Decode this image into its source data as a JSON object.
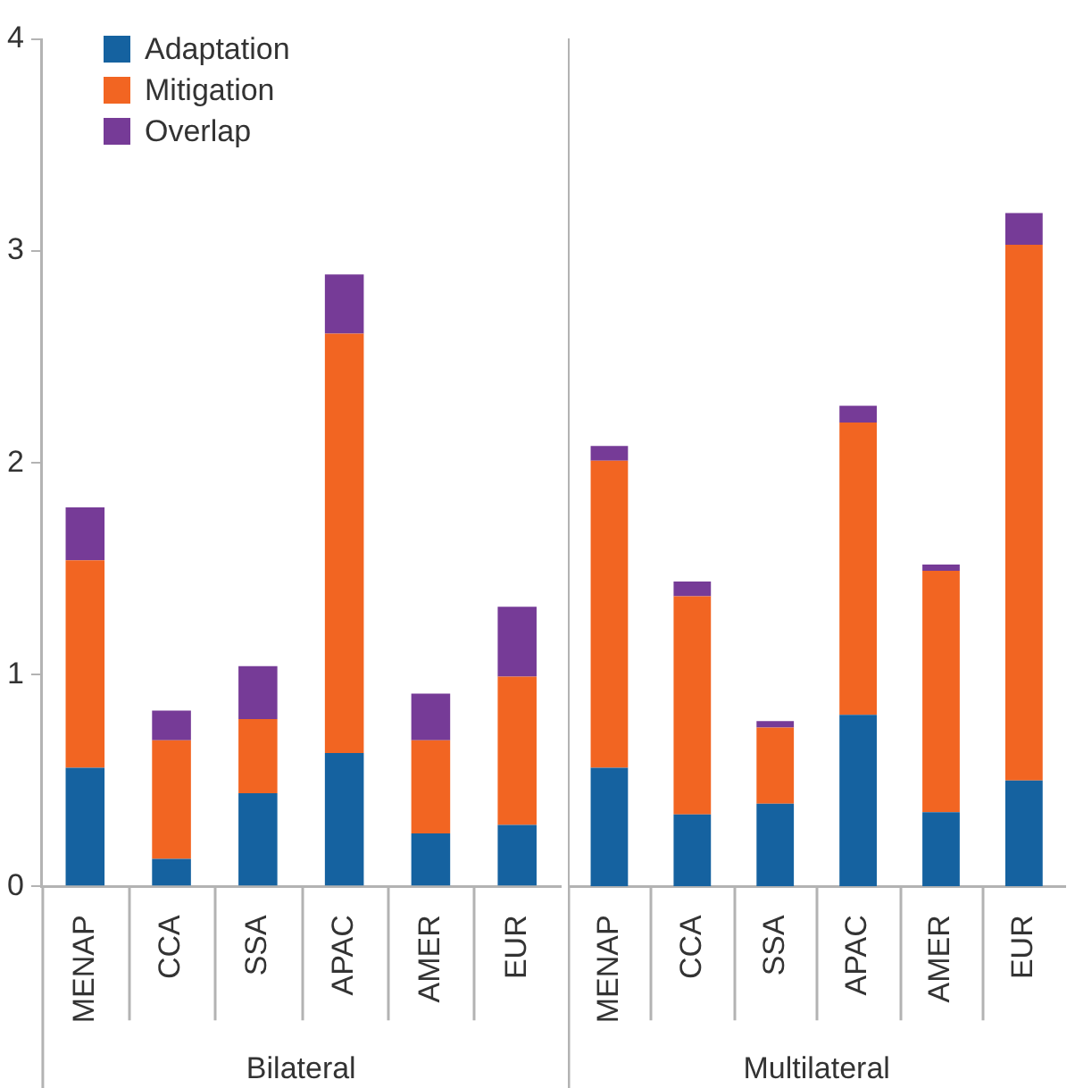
{
  "chart_data": [
    {
      "type": "bar",
      "stacked": true,
      "xlabel": "Bilateral",
      "categories": [
        "MENAP",
        "CCA",
        "SSA",
        "APAC",
        "AMER",
        "EUR"
      ],
      "ylim": [
        0,
        4
      ],
      "yticks": [
        0,
        1,
        2,
        3,
        4
      ],
      "legend": "top left",
      "series": [
        {
          "name": "Adaptation",
          "color": "#1562a0",
          "values": [
            0.56,
            0.13,
            0.44,
            0.63,
            0.25,
            0.29
          ]
        },
        {
          "name": "Mitigation",
          "color": "#f26522",
          "values": [
            0.98,
            0.56,
            0.35,
            1.98,
            0.44,
            0.7
          ]
        },
        {
          "name": "Overlap",
          "color": "#763b97",
          "values": [
            0.25,
            0.14,
            0.25,
            0.28,
            0.22,
            0.33
          ]
        }
      ]
    },
    {
      "type": "bar",
      "stacked": true,
      "xlabel": "Multilateral",
      "categories": [
        "MENAP",
        "CCA",
        "SSA",
        "APAC",
        "AMER",
        "EUR"
      ],
      "ylim": [
        0,
        4
      ],
      "yticks": [
        0,
        1,
        2,
        3,
        4
      ],
      "tick_labels": "x",
      "series": [
        {
          "color": "#1562a0",
          "values": [
            0.56,
            0.34,
            0.39,
            0.81,
            0.35,
            0.5
          ]
        },
        {
          "color": "#f26522",
          "values": [
            1.45,
            1.03,
            0.36,
            1.38,
            1.14,
            2.53
          ]
        },
        {
          "color": "#763b97",
          "values": [
            0.07,
            0.07,
            0.03,
            0.08,
            0.03,
            0.15
          ]
        }
      ]
    }
  ]
}
